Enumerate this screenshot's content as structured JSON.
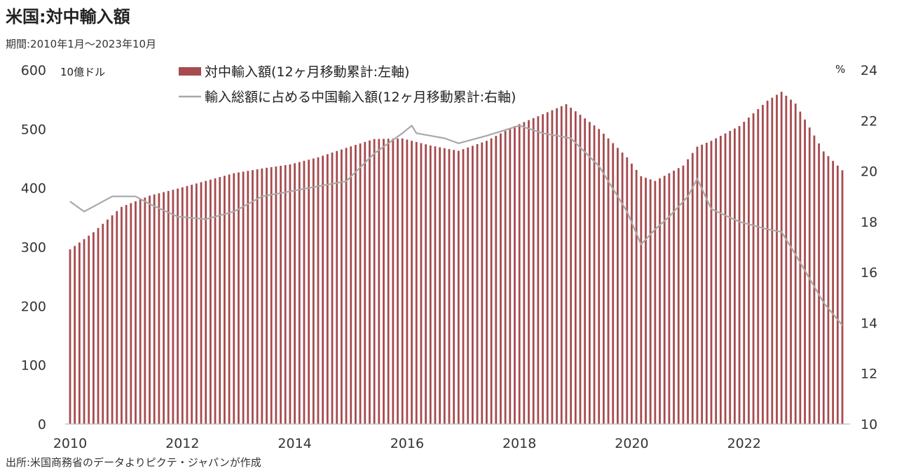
{
  "title": "米国:対中輸入額",
  "subtitle": "期間:2010年1月〜2023年10月",
  "source": "出所:米国商務省のデータよりピクテ・ジャパンが作成",
  "chart_data": {
    "type": "bar+line",
    "left_unit": "10億ドル",
    "right_unit": "%",
    "left_axis": {
      "min": 0,
      "max": 600,
      "ticks": [
        0,
        100,
        200,
        300,
        400,
        500,
        600
      ]
    },
    "right_axis": {
      "min": 10,
      "max": 24,
      "ticks": [
        10,
        12,
        14,
        16,
        18,
        20,
        22,
        24
      ]
    },
    "x_tick_labels": [
      "2010",
      "2012",
      "2014",
      "2016",
      "2018",
      "2020",
      "2022"
    ],
    "x_start": "2010-01",
    "x_end": "2023-10",
    "grid": false,
    "legend_position": "top-center",
    "colors": {
      "bars": "#a64b4f",
      "line": "#a8a8a8"
    },
    "series": [
      {
        "name": "対中輸入額(12ヶ月移動累計:左軸)",
        "kind": "bar",
        "axis": "left",
        "frequency": "monthly",
        "anchors": [
          [
            "2010-01",
            296
          ],
          [
            "2010-06",
            325
          ],
          [
            "2010-12",
            368
          ],
          [
            "2011-06",
            387
          ],
          [
            "2011-12",
            399
          ],
          [
            "2012-06",
            412
          ],
          [
            "2012-12",
            425
          ],
          [
            "2013-06",
            433
          ],
          [
            "2013-12",
            440
          ],
          [
            "2014-06",
            452
          ],
          [
            "2014-12",
            468
          ],
          [
            "2015-06",
            483
          ],
          [
            "2015-12",
            484
          ],
          [
            "2016-06",
            472
          ],
          [
            "2016-12",
            463
          ],
          [
            "2017-06",
            480
          ],
          [
            "2017-12",
            505
          ],
          [
            "2018-06",
            525
          ],
          [
            "2018-11",
            542
          ],
          [
            "2019-06",
            500
          ],
          [
            "2019-12",
            452
          ],
          [
            "2020-03",
            420
          ],
          [
            "2020-06",
            412
          ],
          [
            "2020-12",
            438
          ],
          [
            "2021-03",
            470
          ],
          [
            "2021-06",
            480
          ],
          [
            "2021-12",
            505
          ],
          [
            "2022-06",
            548
          ],
          [
            "2022-09",
            563
          ],
          [
            "2022-12",
            543
          ],
          [
            "2023-06",
            462
          ],
          [
            "2023-10",
            430
          ]
        ]
      },
      {
        "name": "輸入総額に占める中国輸入額(12ヶ月移動累計:右軸)",
        "kind": "line",
        "axis": "right",
        "frequency": "monthly",
        "anchors": [
          [
            "2010-01",
            18.8
          ],
          [
            "2010-04",
            18.4
          ],
          [
            "2010-07",
            18.7
          ],
          [
            "2010-10",
            19.0
          ],
          [
            "2011-03",
            19.0
          ],
          [
            "2011-06",
            18.7
          ],
          [
            "2011-12",
            18.2
          ],
          [
            "2012-06",
            18.1
          ],
          [
            "2012-12",
            18.4
          ],
          [
            "2013-06",
            19.0
          ],
          [
            "2013-12",
            19.2
          ],
          [
            "2014-06",
            19.4
          ],
          [
            "2014-12",
            19.6
          ],
          [
            "2015-06",
            20.7
          ],
          [
            "2015-12",
            21.5
          ],
          [
            "2016-02",
            21.8
          ],
          [
            "2016-03",
            21.5
          ],
          [
            "2016-09",
            21.3
          ],
          [
            "2016-12",
            21.1
          ],
          [
            "2017-06",
            21.4
          ],
          [
            "2018-01",
            21.8
          ],
          [
            "2018-06",
            21.5
          ],
          [
            "2018-12",
            21.3
          ],
          [
            "2019-06",
            20.2
          ],
          [
            "2019-12",
            18.4
          ],
          [
            "2020-03",
            17.1
          ],
          [
            "2020-06",
            17.7
          ],
          [
            "2020-09",
            18.2
          ],
          [
            "2021-01",
            19.0
          ],
          [
            "2021-03",
            19.7
          ],
          [
            "2021-06",
            18.5
          ],
          [
            "2021-12",
            18.0
          ],
          [
            "2022-06",
            17.7
          ],
          [
            "2022-09",
            17.6
          ],
          [
            "2022-12",
            16.7
          ],
          [
            "2023-06",
            14.8
          ],
          [
            "2023-10",
            13.9
          ]
        ]
      }
    ]
  }
}
